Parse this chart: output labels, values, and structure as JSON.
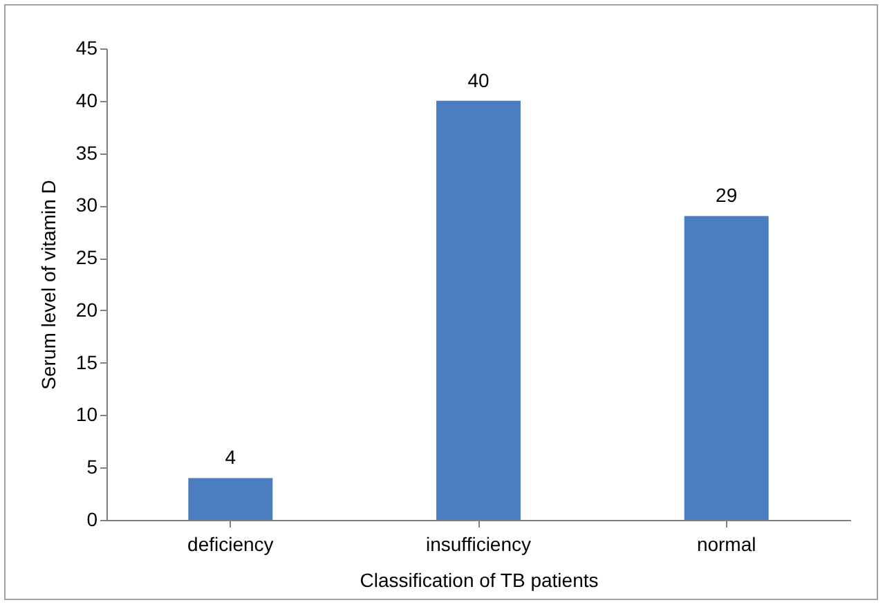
{
  "chart_data": {
    "type": "bar",
    "xlabel": "Classification of TB patients",
    "ylabel": "Serum level of vitamin D",
    "categories": [
      "deficiency",
      "insufficiency",
      "normal"
    ],
    "values": [
      4,
      40,
      29
    ],
    "color": "#4a7ebf",
    "ylim": [
      0,
      45
    ],
    "yticks": [
      0,
      5,
      10,
      15,
      20,
      25,
      30,
      35,
      40,
      45
    ],
    "grid": false,
    "data_labels": true
  }
}
